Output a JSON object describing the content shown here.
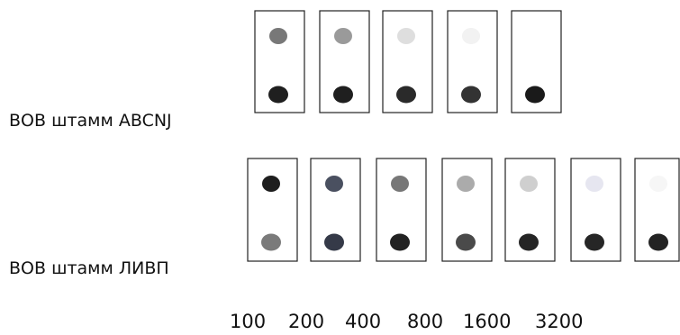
{
  "rows": [
    {
      "label": "ВОВ штамм ABCNJ"
    },
    {
      "label": "ВОВ штамм ЛИВП"
    }
  ],
  "dilutions": [
    100,
    200,
    400,
    800,
    1600,
    3200
  ]
}
